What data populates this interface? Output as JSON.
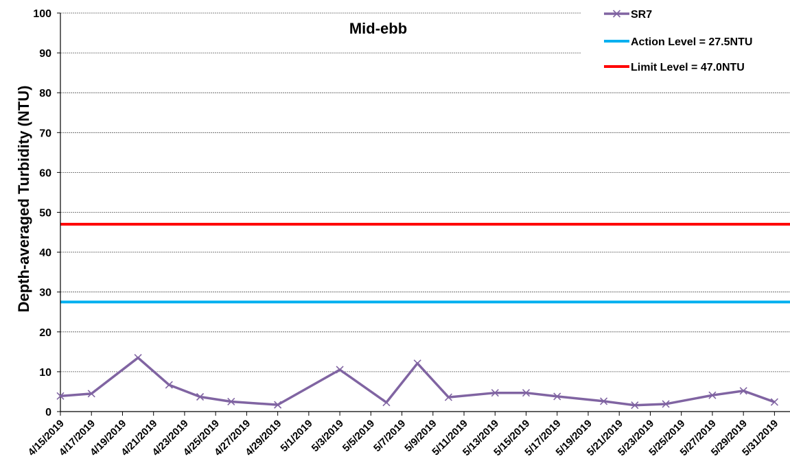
{
  "chart_data": {
    "type": "line",
    "title": "Mid-ebb",
    "xlabel": "",
    "ylabel": "Depth-averaged Turbidity (NTU)",
    "ylim": [
      0,
      100
    ],
    "yticks": [
      "0",
      "10",
      "20",
      "30",
      "40",
      "50",
      "60",
      "70",
      "80",
      "90",
      "100"
    ],
    "xlim": [
      "2019-04-15",
      "2019-06-01"
    ],
    "xtick_labels": [
      "4/15/2019",
      "4/17/2019",
      "4/19/2019",
      "4/21/2019",
      "4/23/2019",
      "4/25/2019",
      "4/27/2019",
      "4/29/2019",
      "5/1/2019",
      "5/3/2019",
      "5/5/2019",
      "5/7/2019",
      "5/9/2019",
      "5/11/2019",
      "5/13/2019",
      "5/15/2019",
      "5/17/2019",
      "5/19/2019",
      "5/21/2019",
      "5/23/2019",
      "5/25/2019",
      "5/27/2019",
      "5/29/2019",
      "5/31/2019"
    ],
    "grid": "horizontal dotted",
    "legend_position": "top-right",
    "series": [
      {
        "name": "SR7",
        "color": "#8064A2",
        "marker": "x",
        "x": [
          "4/15/2019",
          "4/17/2019",
          "4/20/2019",
          "4/22/2019",
          "4/24/2019",
          "4/26/2019",
          "4/29/2019",
          "5/3/2019",
          "5/6/2019",
          "5/8/2019",
          "5/10/2019",
          "5/13/2019",
          "5/15/2019",
          "5/17/2019",
          "5/20/2019",
          "5/22/2019",
          "5/24/2019",
          "5/27/2019",
          "5/29/2019",
          "5/31/2019"
        ],
        "y": [
          3.9,
          4.5,
          13.5,
          6.7,
          3.7,
          2.5,
          1.7,
          10.5,
          2.3,
          12.1,
          3.6,
          4.7,
          4.7,
          3.8,
          2.6,
          1.6,
          1.9,
          4.1,
          5.2,
          2.4
        ]
      }
    ],
    "reference_lines": [
      {
        "name": "Action Level = 27.5NTU",
        "value": 27.5,
        "color": "#00B0F0"
      },
      {
        "name": "Limit Level = 47.0NTU",
        "value": 47.0,
        "color": "#FF0000"
      }
    ]
  }
}
